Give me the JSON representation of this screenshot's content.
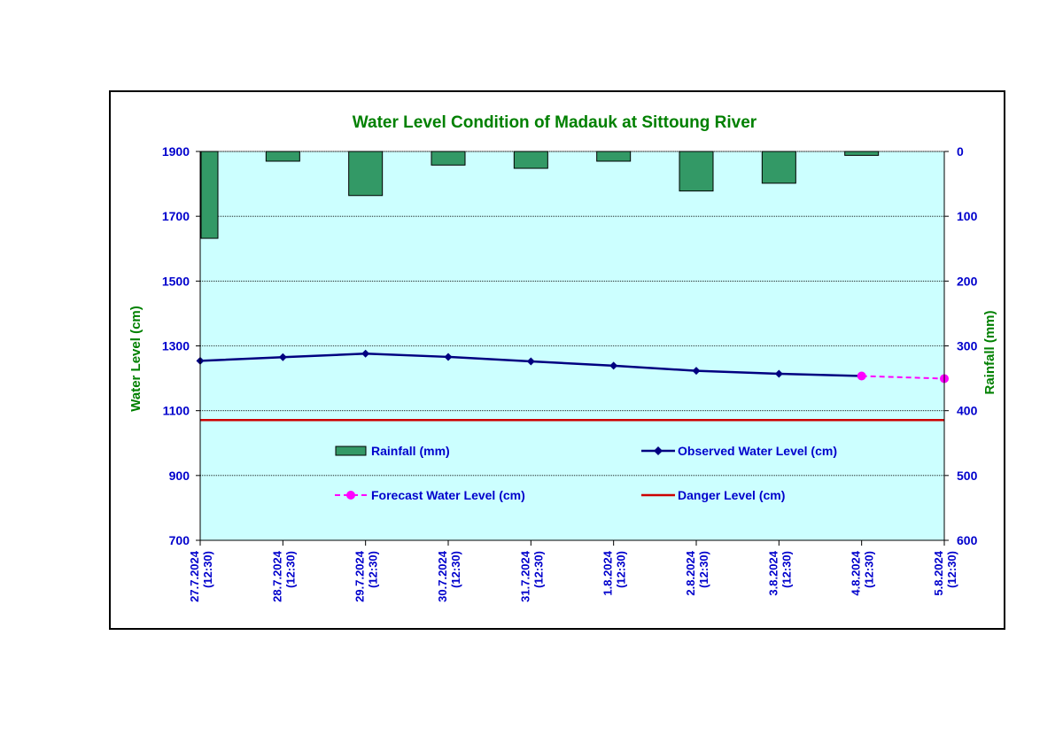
{
  "chart_data": {
    "type": "bar+line",
    "title": "Water Level Condition of Madauk at Sittoung River",
    "ylabel_left": "Water Level (cm)",
    "ylabel_right": "Rainfall (mm)",
    "categories": [
      [
        "27.7.2024",
        "(12:30)"
      ],
      [
        "28.7.2024",
        "(12:30)"
      ],
      [
        "29.7.2024",
        "(12:30)"
      ],
      [
        "30.7.2024",
        "(12:30)"
      ],
      [
        "31.7.2024",
        "(12:30)"
      ],
      [
        "1.8.2024",
        "(12:30)"
      ],
      [
        "2.8.2024",
        "(12:30)"
      ],
      [
        "3.8.2024",
        "(12:30)"
      ],
      [
        "4.8.2024",
        "(12:30)"
      ],
      [
        "5.8.2024",
        "(12:30)"
      ]
    ],
    "ylim_left": [
      700,
      1900
    ],
    "yticks_left": [
      700,
      900,
      1100,
      1300,
      1500,
      1700,
      1900
    ],
    "ylim_right": [
      0,
      600
    ],
    "right_axis_inverted": true,
    "yticks_right": [
      0,
      100,
      200,
      300,
      400,
      500,
      600
    ],
    "grid": true,
    "legend_placement": "inside-bottom",
    "series": [
      {
        "name": "Rainfall (mm)",
        "kind": "bar",
        "axis": "right",
        "values": [
          134,
          15,
          68,
          21,
          26,
          15,
          61,
          49,
          6,
          null
        ],
        "color": "#339966"
      },
      {
        "name": "Observed Water Level (cm)",
        "kind": "line",
        "axis": "left",
        "values": [
          1254,
          1265,
          1276,
          1266,
          1252,
          1239,
          1223,
          1214,
          1207,
          null
        ],
        "color": "#000080"
      },
      {
        "name": "Forecast Water Level (cm)",
        "kind": "line-dashed",
        "axis": "left",
        "points": [
          [
            8,
            1207
          ],
          [
            9,
            1199
          ]
        ],
        "color": "#ff00ff"
      },
      {
        "name": "Danger Level (cm)",
        "kind": "hline",
        "axis": "left",
        "value": 1071,
        "color": "#cc0000"
      }
    ],
    "colors": {
      "plot_bg": "#ccffff",
      "axis_text": "#0000cc",
      "title_text": "#008000",
      "axis_label_text": "#008000"
    }
  }
}
